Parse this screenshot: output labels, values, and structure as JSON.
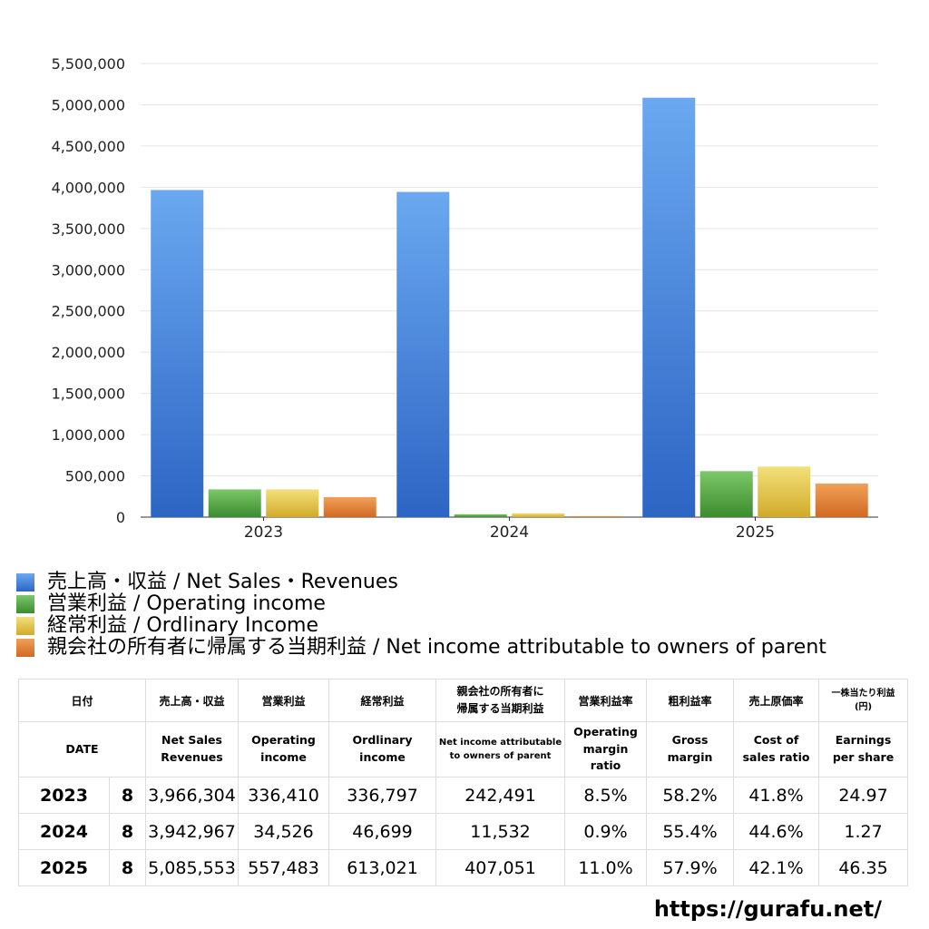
{
  "chart_data": {
    "type": "bar",
    "categories": [
      "2023",
      "2024",
      "2025"
    ],
    "ylim": [
      0,
      5500000
    ],
    "yticks": [
      "0",
      "500,000",
      "1,000,000",
      "1,500,000",
      "2,000,000",
      "2,500,000",
      "3,000,000",
      "3,500,000",
      "4,000,000",
      "4,500,000",
      "5,000,000",
      "5,500,000"
    ],
    "grid": true,
    "legend_position": "bottom-left",
    "series": [
      {
        "name": "売上高・収益 / Net Sales・Revenues",
        "values": [
          3966304,
          3942967,
          5085553
        ],
        "color": "#3b79d6"
      },
      {
        "name": "営業利益 / Operating income",
        "values": [
          336410,
          34526,
          557483
        ],
        "color": "#4a9c3c"
      },
      {
        "name": "経常利益 / Ordlinary Income",
        "values": [
          336797,
          46699,
          613021
        ],
        "color": "#e0c33a"
      },
      {
        "name": "親会社の所有者に帰属する当期利益 / Net income attributable to owners of parent",
        "values": [
          242491,
          11532,
          407051
        ],
        "color": "#e07c2e"
      }
    ]
  },
  "table": {
    "header_jp": [
      "日付",
      "売上高・収益",
      "営業利益",
      "経常利益",
      "親会社の所有者に\n帰属する当期利益",
      "営業利益率",
      "粗利益率",
      "売上原価率",
      "一株当たり利益\n(円)"
    ],
    "header_en": [
      "DATE",
      "Net Sales\nRevenues",
      "Operating\nincome",
      "Ordlinary\nincome",
      "Net income attributable\nto owners of parent",
      "Operating\nmargin\nratio",
      "Gross\nmargin",
      "Cost of\nsales ratio",
      "Earnings\nper share"
    ],
    "rows": [
      {
        "year": "2023",
        "month": "8",
        "sales": "3,966,304",
        "op": "336,410",
        "ord": "336,797",
        "net": "242,491",
        "opm": "8.5%",
        "gm": "58.2%",
        "cos": "41.8%",
        "eps": "24.97"
      },
      {
        "year": "2024",
        "month": "8",
        "sales": "3,942,967",
        "op": "34,526",
        "ord": "46,699",
        "net": "11,532",
        "opm": "0.9%",
        "gm": "55.4%",
        "cos": "44.6%",
        "eps": "1.27"
      },
      {
        "year": "2025",
        "month": "8",
        "sales": "5,085,553",
        "op": "557,483",
        "ord": "613,021",
        "net": "407,051",
        "opm": "11.0%",
        "gm": "57.9%",
        "cos": "42.1%",
        "eps": "46.35"
      }
    ]
  },
  "footer": {
    "site": "https://gurafu.net/"
  }
}
